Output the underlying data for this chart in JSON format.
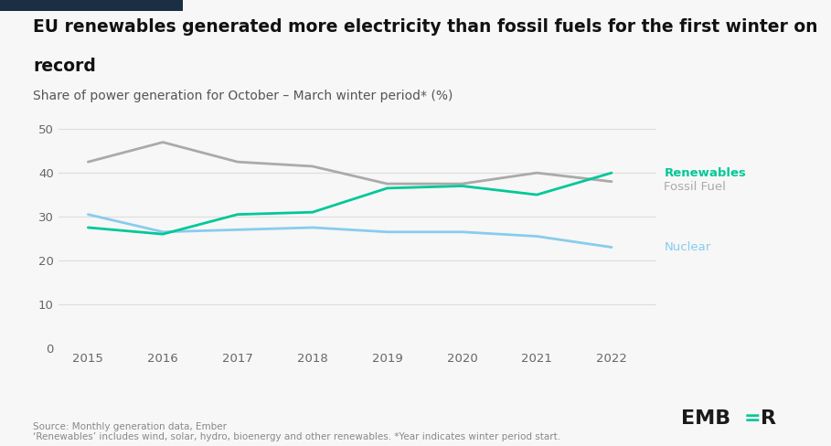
{
  "title_line1": "EU renewables generated more electricity than fossil fuels for the first winter on",
  "title_line2": "record",
  "subtitle": "Share of power generation for October – March winter period* (%)",
  "years": [
    2015,
    2016,
    2017,
    2018,
    2019,
    2020,
    2021,
    2022
  ],
  "renewables": [
    27.5,
    26.0,
    30.5,
    31.0,
    36.5,
    37.0,
    35.0,
    40.0
  ],
  "fossil_fuel": [
    42.5,
    47.0,
    42.5,
    41.5,
    37.5,
    37.5,
    40.0,
    38.0
  ],
  "nuclear": [
    30.5,
    26.5,
    27.0,
    27.5,
    26.5,
    26.5,
    25.5,
    23.0
  ],
  "renewables_color": "#00c897",
  "fossil_fuel_color": "#aaaaaa",
  "nuclear_color": "#88ccee",
  "background_color": "#f7f7f7",
  "title_fontsize": 13.5,
  "subtitle_fontsize": 10,
  "ylim": [
    0,
    53
  ],
  "yticks": [
    0,
    10,
    20,
    30,
    40,
    50
  ],
  "source_text": "Source: Monthly generation data, Ember\n‘Renewables’ includes wind, solar, hydro, bioenergy and other renewables. *Year indicates winter period start.",
  "accent_bar_color_left": "#1a2e44",
  "accent_bar_color_right": "#00c897"
}
